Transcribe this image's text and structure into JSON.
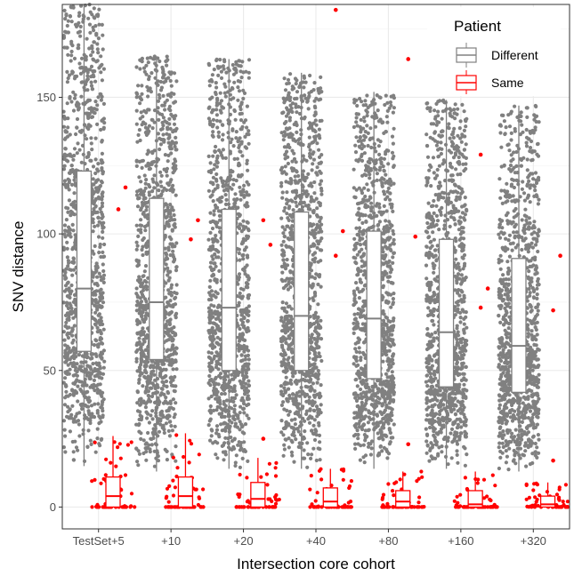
{
  "chart_data": {
    "type": "boxplot-jitter",
    "xlabel": "Intersection core cohort",
    "ylabel": "SNV distance",
    "categories": [
      "TestSet+5",
      "+10",
      "+20",
      "+40",
      "+80",
      "+160",
      "+320"
    ],
    "ylim": [
      -8,
      184
    ],
    "yticks": [
      0,
      50,
      100,
      150
    ],
    "grid": true,
    "legend": {
      "title": "Patient",
      "position": "top-right",
      "entries": [
        "Different",
        "Same"
      ]
    },
    "colors": {
      "Different": "#808080",
      "Same": "#ff0000"
    },
    "series": [
      {
        "name": "Different",
        "boxes": [
          {
            "min": 15,
            "q1": 57,
            "median": 80,
            "q3": 123,
            "max": 184
          },
          {
            "min": 13,
            "q1": 54,
            "median": 75,
            "q3": 113,
            "max": 165
          },
          {
            "min": 14,
            "q1": 50,
            "median": 73,
            "q3": 109,
            "max": 164
          },
          {
            "min": 14,
            "q1": 50,
            "median": 70,
            "q3": 108,
            "max": 159
          },
          {
            "min": 14,
            "q1": 47,
            "median": 69,
            "q3": 101,
            "max": 152
          },
          {
            "min": 14,
            "q1": 44,
            "median": 64,
            "q3": 98,
            "max": 149
          },
          {
            "min": 13,
            "q1": 42,
            "median": 59,
            "q3": 91,
            "max": 147
          }
        ],
        "outliers": [
          [],
          [],
          [],
          [],
          [],
          [],
          []
        ]
      },
      {
        "name": "Same",
        "boxes": [
          {
            "min": 0,
            "q1": 0,
            "median": 4,
            "q3": 11,
            "max": 26
          },
          {
            "min": 0,
            "q1": 0,
            "median": 4,
            "q3": 11,
            "max": 27
          },
          {
            "min": 0,
            "q1": 0,
            "median": 3,
            "q3": 9,
            "max": 18
          },
          {
            "min": 0,
            "q1": 0,
            "median": 2,
            "q3": 7,
            "max": 14
          },
          {
            "min": 0,
            "q1": 0,
            "median": 2,
            "q3": 6,
            "max": 13
          },
          {
            "min": 0,
            "q1": 0,
            "median": 1,
            "q3": 6,
            "max": 13
          },
          {
            "min": 0,
            "q1": 0,
            "median": 1,
            "q3": 4,
            "max": 9
          }
        ],
        "outliers": [
          [
            109,
            117
          ],
          [
            98,
            105
          ],
          [
            25,
            96,
            105
          ],
          [
            92,
            101,
            182
          ],
          [
            23,
            99,
            164
          ],
          [
            73,
            80,
            129
          ],
          [
            72,
            92,
            17
          ]
        ]
      }
    ]
  }
}
